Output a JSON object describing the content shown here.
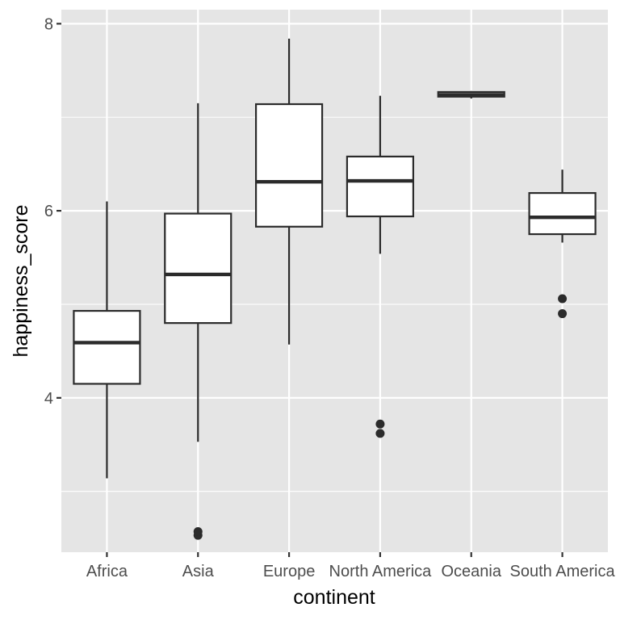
{
  "chart_data": {
    "type": "boxplot",
    "xlabel": "continent",
    "ylabel": "happiness_score",
    "categories": [
      "Africa",
      "Asia",
      "Europe",
      "North America",
      "Oceania",
      "South America"
    ],
    "ylim": [
      2.35,
      8.15
    ],
    "yticks": [
      4,
      6,
      8
    ],
    "yticklabels": [
      "4",
      "6",
      "8"
    ],
    "grid": true,
    "background": "#e5e5e5",
    "box_fill": "#ffffff",
    "line_color": "#2b2b2b",
    "boxes": [
      {
        "category": "Africa",
        "whisker_low": 3.14,
        "q1": 4.15,
        "median": 4.59,
        "q3": 4.93,
        "whisker_high": 6.1,
        "outliers": []
      },
      {
        "category": "Asia",
        "whisker_low": 3.53,
        "q1": 4.8,
        "median": 5.32,
        "q3": 5.97,
        "whisker_high": 7.15,
        "outliers": [
          2.53,
          2.57
        ]
      },
      {
        "category": "Europe",
        "whisker_low": 4.57,
        "q1": 5.83,
        "median": 6.31,
        "q3": 7.14,
        "whisker_high": 7.84,
        "outliers": []
      },
      {
        "category": "North America",
        "whisker_low": 5.54,
        "q1": 5.94,
        "median": 6.32,
        "q3": 6.58,
        "whisker_high": 7.23,
        "outliers": [
          3.62,
          3.72
        ]
      },
      {
        "category": "Oceania",
        "whisker_low": 7.2,
        "q1": 7.22,
        "median": 7.24,
        "q3": 7.27,
        "whisker_high": 7.28,
        "outliers": []
      },
      {
        "category": "South America",
        "whisker_low": 5.66,
        "q1": 5.75,
        "median": 5.93,
        "q3": 6.19,
        "whisker_high": 6.44,
        "outliers": [
          4.9,
          5.06
        ]
      }
    ]
  }
}
